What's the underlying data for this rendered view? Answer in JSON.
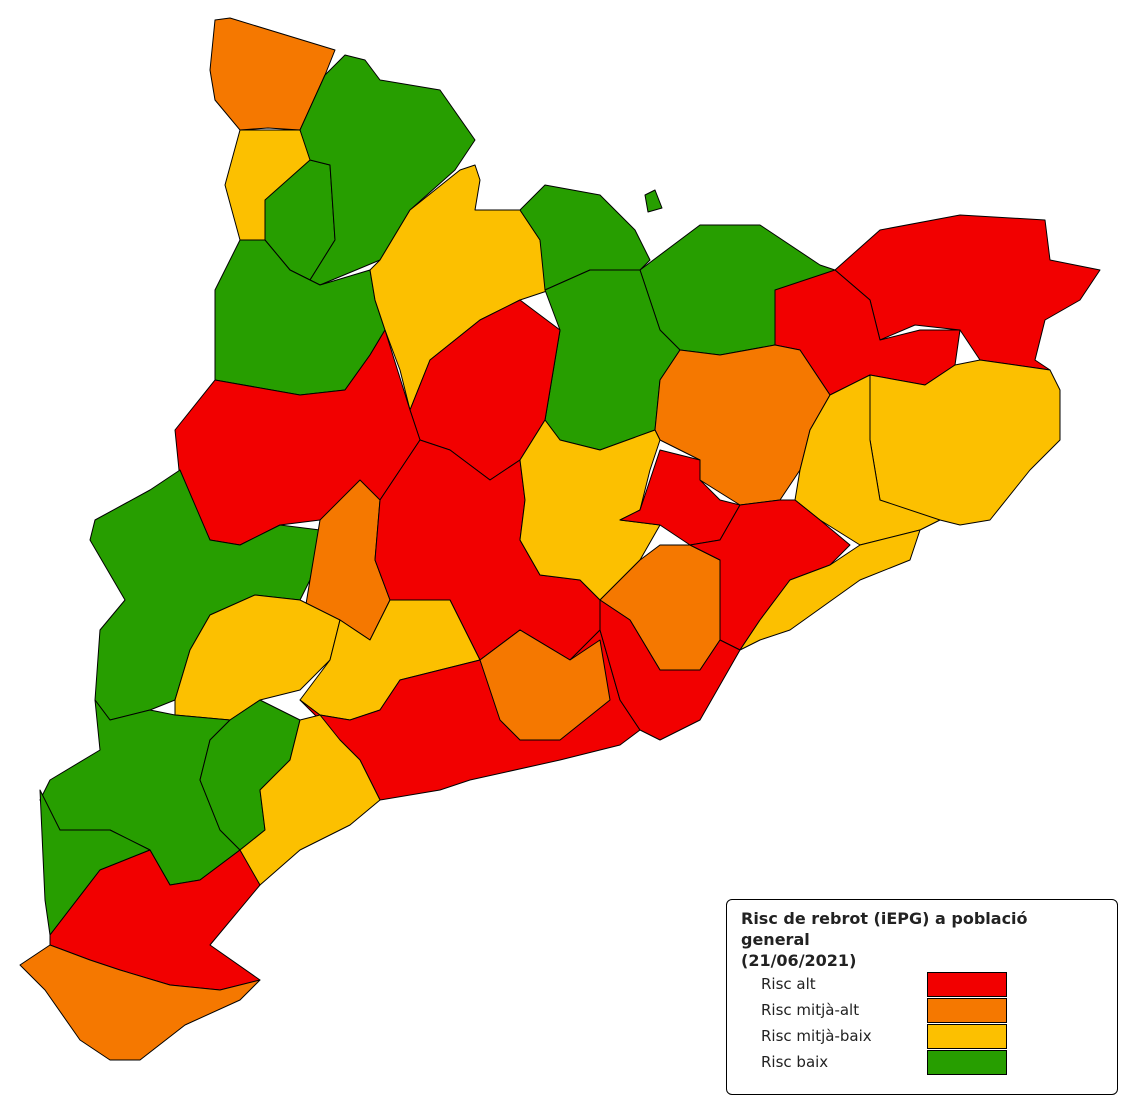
{
  "legend": {
    "title": "Risc de rebrot (iEPG) a població general",
    "date": "(21/06/2021)",
    "items": [
      {
        "label": "Risc alt",
        "color": "#f20000"
      },
      {
        "label": "Risc mitjà-alt",
        "color": "#f57800"
      },
      {
        "label": "Risc mitjà-baix",
        "color": "#fcc000"
      },
      {
        "label": "Risc baix",
        "color": "#279e00"
      }
    ]
  }
}
